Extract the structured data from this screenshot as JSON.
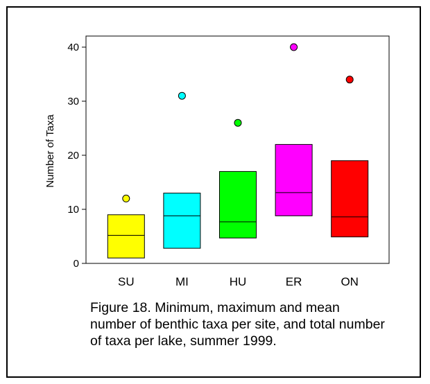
{
  "chart_data": {
    "type": "box",
    "ylabel": "Number of Taxa",
    "xlabel": "",
    "ylim": [
      0,
      40
    ],
    "yticks": [
      0,
      10,
      20,
      30,
      40
    ],
    "categories": [
      "SU",
      "MI",
      "HU",
      "ER",
      "ON"
    ],
    "series": [
      {
        "min": 1,
        "max": 9,
        "mean": 5.2,
        "total": 12
      },
      {
        "min": 2.8,
        "max": 13,
        "mean": 8.8,
        "total": 31
      },
      {
        "min": 4.7,
        "max": 17,
        "mean": 7.7,
        "total": 26
      },
      {
        "min": 8.8,
        "max": 22,
        "mean": 13.1,
        "total": 40
      },
      {
        "min": 4.9,
        "max": 19,
        "mean": 8.6,
        "total": 34
      }
    ],
    "colors": [
      "#ffff00",
      "#00ffff",
      "#00ff00",
      "#ff00ff",
      "#ff0000"
    ],
    "grid": false,
    "legend": "none"
  },
  "caption": "Figure 18. Minimum, maximum and mean number of benthic taxa per site, and total number of taxa per lake, summer 1999."
}
